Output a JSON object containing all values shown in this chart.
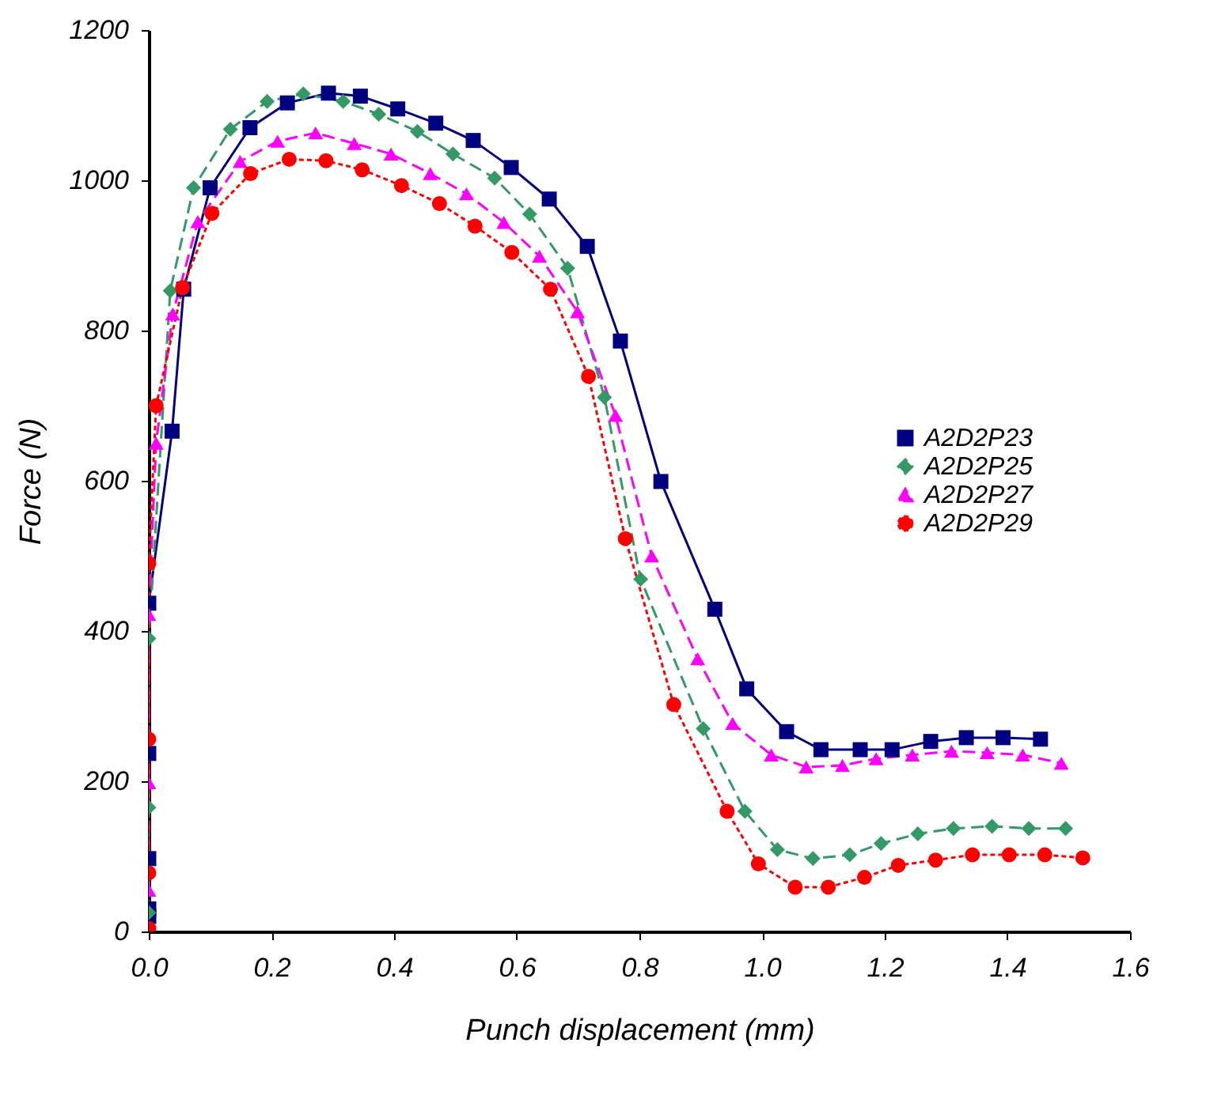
{
  "chart_data": {
    "type": "line",
    "xlabel": "Punch displacement (mm)",
    "ylabel": "Force (N)",
    "xlim": [
      0,
      1.6
    ],
    "ylim": [
      0,
      1200
    ],
    "xticks": [
      {
        "value": 0,
        "label": "0.0"
      },
      {
        "value": 0.2,
        "label": "0.2"
      },
      {
        "value": 0.4,
        "label": "0.4"
      },
      {
        "value": 0.6,
        "label": "0.6"
      },
      {
        "value": 0.8,
        "label": "0.8"
      },
      {
        "value": 1,
        "label": "1.0"
      },
      {
        "value": 1.2,
        "label": "1.2"
      },
      {
        "value": 1.4,
        "label": "1.4"
      },
      {
        "value": 1.6,
        "label": "1.6"
      }
    ],
    "yticks": [
      0,
      200,
      400,
      600,
      800,
      1000,
      1200
    ],
    "grid": false,
    "legend": "right",
    "series": [
      {
        "name": "A2D2P23",
        "color": "#000080",
        "marker": "square",
        "line_style": "solid",
        "x": [
          0,
          0,
          0,
          0,
          0,
          0.038,
          0.057,
          0.1,
          0.165,
          0.226,
          0.293,
          0.345,
          0.406,
          0.468,
          0.529,
          0.591,
          0.653,
          0.715,
          0.769,
          0.835,
          0.923,
          0.975,
          1.04,
          1.096,
          1.16,
          1.212,
          1.275,
          1.333,
          1.393,
          1.454
        ],
        "values": [
          20,
          30,
          97,
          237,
          437,
          666,
          855,
          990,
          1070,
          1103,
          1116,
          1112,
          1095,
          1076,
          1053,
          1017,
          975,
          912,
          786,
          599,
          429,
          323,
          266,
          242,
          242,
          242,
          253,
          258,
          258,
          256
        ]
      },
      {
        "name": "A2D2P25",
        "color": "#339966",
        "marker": "diamond",
        "line_style": "dashed",
        "x": [
          0,
          0,
          0,
          0.035,
          0.073,
          0.133,
          0.193,
          0.252,
          0.317,
          0.375,
          0.438,
          0.496,
          0.564,
          0.621,
          0.683,
          0.743,
          0.802,
          0.904,
          0.972,
          1.025,
          1.083,
          1.143,
          1.194,
          1.254,
          1.312,
          1.375,
          1.435,
          1.495
        ],
        "values": [
          25,
          165,
          390,
          853,
          990,
          1068,
          1105,
          1115,
          1105,
          1088,
          1065,
          1035,
          1003,
          955,
          883,
          711,
          469,
          270,
          160,
          109,
          97,
          102,
          117,
          130,
          137,
          140,
          137,
          137
        ]
      },
      {
        "name": "A2D2P27",
        "color": "#ff00ff",
        "marker": "triangle",
        "line_style": "dashed",
        "x": [
          0,
          0,
          0,
          0.012,
          0.039,
          0.08,
          0.149,
          0.21,
          0.272,
          0.335,
          0.395,
          0.459,
          0.518,
          0.579,
          0.637,
          0.699,
          0.761,
          0.82,
          0.895,
          0.952,
          1.015,
          1.072,
          1.131,
          1.186,
          1.245,
          1.309,
          1.367,
          1.425,
          1.488
        ],
        "values": [
          55,
          198,
          422,
          650,
          822,
          945,
          1025,
          1052,
          1063,
          1049,
          1035,
          1009,
          982,
          944,
          899,
          825,
          687,
          500,
          363,
          277,
          235,
          219,
          221,
          230,
          235,
          240,
          238,
          235,
          224
        ]
      },
      {
        "name": "A2D2P29",
        "color": "#ff0000",
        "marker": "circle",
        "line_style": "dotted",
        "x": [
          0,
          0,
          0,
          0,
          0.012,
          0.055,
          0.103,
          0.166,
          0.229,
          0.289,
          0.348,
          0.412,
          0.474,
          0.532,
          0.592,
          0.655,
          0.717,
          0.777,
          0.856,
          0.943,
          0.994,
          1.054,
          1.108,
          1.167,
          1.222,
          1.283,
          1.343,
          1.403,
          1.461,
          1.523
        ],
        "values": [
          4,
          78,
          256,
          490,
          700,
          857,
          956,
          1009,
          1028,
          1026,
          1014,
          993,
          969,
          939,
          904,
          855,
          739,
          523,
          302,
          160,
          90,
          59,
          59,
          72,
          88,
          95,
          102,
          102,
          102,
          98
        ]
      }
    ]
  }
}
